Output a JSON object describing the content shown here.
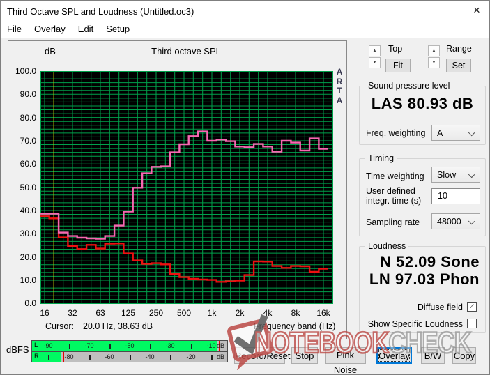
{
  "window": {
    "title": "Third Octave SPL and Loudness (Untitled.oc3)",
    "close_glyph": "×"
  },
  "menu": {
    "items": [
      "File",
      "Overlay",
      "Edit",
      "Setup"
    ]
  },
  "chart_data": {
    "type": "step-line",
    "title": "Third octave SPL",
    "y_axis_unit": "dB",
    "x_axis_label": "Frequency band (Hz)",
    "side_label": "ARTA",
    "ylim": [
      0,
      100
    ],
    "grid": true,
    "y_tick_labels": [
      "100.0",
      "90.0",
      "80.0",
      "70.0",
      "60.0",
      "50.0",
      "40.0",
      "30.0",
      "20.0",
      "10.0",
      "0.0"
    ],
    "x_tick_labels": [
      "16",
      "32",
      "63",
      "125",
      "250",
      "500",
      "1k",
      "2k",
      "4k",
      "8k",
      "16k"
    ],
    "bands_hz": [
      "16",
      "20",
      "25",
      "31.5",
      "40",
      "50",
      "63",
      "80",
      "100",
      "125",
      "160",
      "200",
      "250",
      "315",
      "400",
      "500",
      "630",
      "800",
      "1k",
      "1.25k",
      "1.6k",
      "2k",
      "2.5k",
      "3.15k",
      "4k",
      "5k",
      "6.3k",
      "8k",
      "10k",
      "12.5k",
      "16k"
    ],
    "series": [
      {
        "name": "third-octave SPL (pink)",
        "color": "#f767b1",
        "values": [
          38.6,
          38.6,
          30.5,
          29,
          28.3,
          28,
          27.8,
          29,
          33.5,
          39.5,
          49.8,
          56,
          58.8,
          59,
          65,
          68.5,
          72,
          74,
          70,
          70.5,
          69.8,
          67.5,
          67.2,
          68.6,
          67.5,
          65.3,
          70,
          69.2,
          65.8,
          71,
          66.5
        ]
      },
      {
        "name": "secondary curve (red)",
        "color": "#ee1111",
        "values": [
          37.5,
          36.6,
          28.4,
          24.7,
          23.4,
          25.2,
          23.6,
          25.7,
          25.8,
          21.5,
          18.5,
          17,
          17.3,
          16.8,
          12.7,
          11.3,
          10.6,
          10.3,
          10.1,
          9.3,
          9.5,
          9.8,
          12.2,
          18.1,
          18,
          16.1,
          15.3,
          16.1,
          16,
          13.6,
          14.9
        ]
      }
    ],
    "cursor": {
      "label": "Cursor:",
      "readout": "20.0 Hz, 38.63 dB",
      "frequency_hz": 20,
      "value_db": 38.63
    },
    "colors": {
      "plot_bg": "#000000",
      "grid": "#00a14b",
      "cursor_line": "#c9ca00"
    }
  },
  "controls_top": {
    "top_label": "Top",
    "fit_button": "Fit",
    "range_label": "Range",
    "set_button": "Set"
  },
  "spl_group": {
    "title": "Sound pressure level",
    "reading": "LAS 80.93 dB",
    "freq_weighting_label": "Freq. weighting",
    "freq_weighting_value": "A"
  },
  "timing_group": {
    "title": "Timing",
    "time_weighting_label": "Time weighting",
    "time_weighting_value": "Slow",
    "integr_label_line1": "User defined",
    "integr_label_line2": "integr. time (s)",
    "integr_value": "10",
    "sampling_label": "Sampling rate",
    "sampling_value": "48000"
  },
  "loudness_group": {
    "title": "Loudness",
    "n_reading": "N 52.09 Sone",
    "ln_reading": "LN 97.03 Phon",
    "diffuse_label": "Diffuse field",
    "diffuse_checked": true,
    "check_glyph": "✓",
    "specific_label": "Show Specific Loudness",
    "specific_checked": false
  },
  "meters": {
    "label": "dBFS",
    "unit": "dB",
    "scale_min_db": -98,
    "scale_max_db": -2,
    "rows": [
      {
        "channel": "L",
        "level_db": -7,
        "peak_db": -6.2,
        "labels_db": [
          -90,
          -70,
          -50,
          -30,
          -10
        ],
        "ticks_db": [
          -80,
          -60,
          -40,
          -20
        ]
      },
      {
        "channel": "R",
        "level_db": -84,
        "peak_db": -83,
        "labels_db": [
          -80,
          -60,
          -40,
          -20
        ],
        "ticks_db": [
          -90,
          -70,
          -50,
          -30,
          -10
        ]
      }
    ]
  },
  "buttons": [
    {
      "label": "Record/Reset",
      "focused": false
    },
    {
      "label": "Stop",
      "focused": false
    },
    {
      "label": "Pink Noise",
      "focused": false
    },
    {
      "label": "Overlay",
      "focused": true
    },
    {
      "label": "B/W",
      "focused": false
    },
    {
      "label": "Copy",
      "focused": false
    }
  ],
  "watermark": {
    "text_primary": "NOTEBOOK",
    "text_secondary": "CHECK"
  }
}
